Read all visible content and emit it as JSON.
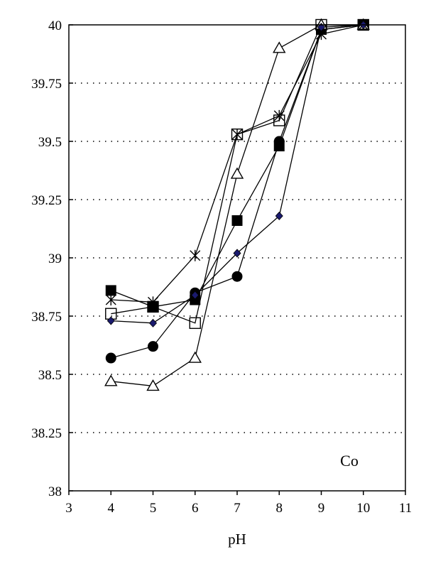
{
  "chart_data": {
    "type": "line",
    "xlabel": "pH",
    "ylabel": "",
    "xlim": [
      3,
      11
    ],
    "ylim": [
      38,
      40
    ],
    "xticks": [
      "3",
      "4",
      "5",
      "6",
      "7",
      "8",
      "9",
      "10",
      "11"
    ],
    "yticks": [
      "38",
      "38.25",
      "38.5",
      "38.75",
      "39",
      "39.25",
      "39.5",
      "39.75",
      "40"
    ],
    "grid": "horizontal-dotted",
    "annotation": "Co",
    "series": [
      {
        "marker": "filled-square",
        "points": [
          [
            4,
            38.86
          ],
          [
            5,
            38.79
          ],
          [
            6,
            38.82
          ],
          [
            7,
            39.16
          ],
          [
            8,
            39.48
          ],
          [
            9,
            39.98
          ],
          [
            10,
            40.0
          ]
        ]
      },
      {
        "marker": "filled-circle",
        "points": [
          [
            4,
            38.57
          ],
          [
            5,
            38.62
          ],
          [
            6,
            38.85
          ],
          [
            7,
            38.92
          ],
          [
            8,
            39.5
          ],
          [
            9,
            39.98
          ],
          [
            10,
            40.0
          ]
        ]
      },
      {
        "marker": "open-triangle",
        "points": [
          [
            4,
            38.47
          ],
          [
            5,
            38.45
          ],
          [
            6,
            38.57
          ],
          [
            7,
            39.36
          ],
          [
            8,
            39.9
          ],
          [
            9,
            40.0
          ],
          [
            10,
            40.0
          ]
        ]
      },
      {
        "marker": "open-square",
        "points": [
          [
            4,
            38.76
          ],
          [
            5,
            38.79
          ],
          [
            6,
            38.72
          ],
          [
            7,
            39.53
          ],
          [
            8,
            39.59
          ],
          [
            9,
            40.0
          ],
          [
            10,
            40.0
          ]
        ]
      },
      {
        "marker": "star",
        "points": [
          [
            4,
            38.82
          ],
          [
            5,
            38.81
          ],
          [
            6,
            39.01
          ],
          [
            7,
            39.53
          ],
          [
            8,
            39.61
          ],
          [
            9,
            39.96
          ],
          [
            10,
            40.0
          ]
        ]
      },
      {
        "marker": "filled-diamond",
        "color": "#1a1a6e",
        "points": [
          [
            4,
            38.73
          ],
          [
            5,
            38.72
          ],
          [
            6,
            38.84
          ],
          [
            7,
            39.02
          ],
          [
            8,
            39.18
          ],
          [
            9,
            39.99
          ],
          [
            10,
            40.0
          ]
        ]
      }
    ]
  }
}
